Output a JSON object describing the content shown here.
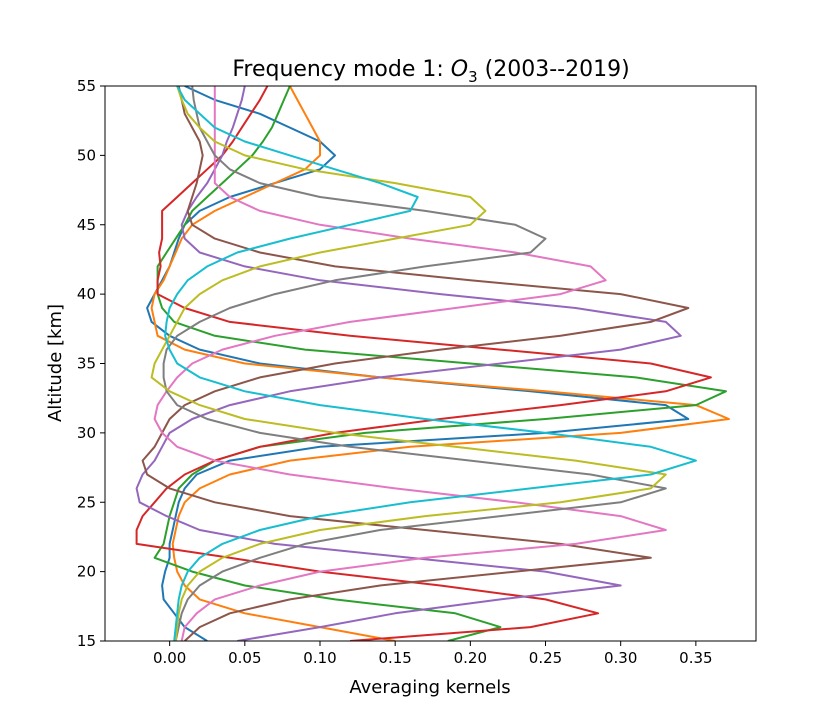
{
  "chart_data": {
    "type": "line",
    "title": "Frequency mode 1: O3 (2003--2019)",
    "title_parts": {
      "prefix": "Frequency mode 1: ",
      "species": "O",
      "subscript": "3",
      "suffix": " (2003--2019)"
    },
    "xlabel": "Averaging kernels",
    "ylabel": "Altitude [km]",
    "xlim": [
      -0.043,
      0.39
    ],
    "ylim": [
      15,
      55
    ],
    "xticks": [
      0.0,
      0.05,
      0.1,
      0.15,
      0.2,
      0.25,
      0.3,
      0.35
    ],
    "xtick_labels": [
      "0.00",
      "0.05",
      "0.10",
      "0.15",
      "0.20",
      "0.25",
      "0.30",
      "0.35"
    ],
    "yticks": [
      15,
      20,
      25,
      30,
      35,
      40,
      45,
      50,
      55
    ],
    "ytick_labels": [
      "15",
      "20",
      "25",
      "30",
      "35",
      "40",
      "45",
      "50",
      "55"
    ],
    "grid": false,
    "legend": "none",
    "altitudes": [
      15,
      16,
      17,
      18,
      19,
      20,
      21,
      22,
      23,
      24,
      25,
      26,
      27,
      28,
      29,
      30,
      31,
      32,
      33,
      34,
      35,
      36,
      37,
      38,
      39,
      40,
      41,
      42,
      43,
      44,
      45,
      46,
      47,
      48,
      49,
      50,
      51,
      52,
      53,
      54,
      55
    ],
    "series": [
      {
        "color": "#1f77b4",
        "values": [
          0.025,
          0.01,
          0.003,
          -0.004,
          -0.005,
          -0.003,
          0.0,
          0.0,
          0.002,
          0.004,
          0.006,
          0.01,
          0.018,
          0.04,
          0.1,
          0.25,
          0.345,
          0.33,
          0.24,
          0.14,
          0.06,
          0.02,
          0.0,
          -0.012,
          -0.015,
          -0.01,
          -0.005,
          0.0,
          0.003,
          0.006,
          0.01,
          0.02,
          0.04,
          0.07,
          0.1,
          0.11,
          0.1,
          0.08,
          0.06,
          0.03,
          0.01
        ]
      },
      {
        "color": "#ff7f0e",
        "values": [
          0.15,
          0.1,
          0.05,
          0.02,
          0.01,
          0.005,
          0.003,
          0.002,
          0.004,
          0.006,
          0.01,
          0.02,
          0.04,
          0.08,
          0.16,
          0.3,
          0.372,
          0.35,
          0.25,
          0.14,
          0.05,
          0.01,
          -0.008,
          -0.01,
          -0.012,
          -0.01,
          -0.004,
          0.0,
          0.004,
          0.008,
          0.015,
          0.03,
          0.05,
          0.07,
          0.09,
          0.1,
          0.1,
          0.095,
          0.09,
          0.085,
          0.08
        ]
      },
      {
        "color": "#2ca02c",
        "values": [
          0.185,
          0.22,
          0.19,
          0.11,
          0.05,
          0.015,
          -0.01,
          -0.004,
          -0.002,
          0.0,
          0.003,
          0.006,
          0.015,
          0.03,
          0.06,
          0.13,
          0.25,
          0.35,
          0.37,
          0.31,
          0.2,
          0.09,
          0.03,
          0.003,
          -0.005,
          -0.008,
          -0.008,
          -0.008,
          -0.002,
          0.004,
          0.01,
          0.015,
          0.025,
          0.035,
          0.045,
          0.055,
          0.062,
          0.068,
          0.072,
          0.076,
          0.08
        ]
      },
      {
        "color": "#d62728",
        "values": [
          0.12,
          0.24,
          0.285,
          0.25,
          0.18,
          0.1,
          0.04,
          -0.022,
          -0.022,
          -0.018,
          -0.01,
          -0.002,
          0.01,
          0.03,
          0.06,
          0.11,
          0.18,
          0.26,
          0.33,
          0.36,
          0.32,
          0.22,
          0.12,
          0.04,
          0.01,
          -0.008,
          -0.008,
          -0.006,
          -0.007,
          -0.005,
          -0.005,
          -0.005,
          0.005,
          0.015,
          0.025,
          0.035,
          0.042,
          0.048,
          0.054,
          0.06,
          0.065
        ]
      },
      {
        "color": "#9467bd",
        "values": [
          0.045,
          0.1,
          0.15,
          0.22,
          0.3,
          0.25,
          0.16,
          0.07,
          0.02,
          -0.002,
          -0.02,
          -0.022,
          -0.018,
          -0.01,
          -0.005,
          0.0,
          0.015,
          0.04,
          0.08,
          0.14,
          0.22,
          0.3,
          0.34,
          0.33,
          0.27,
          0.18,
          0.1,
          0.05,
          0.02,
          0.01,
          0.008,
          0.012,
          0.018,
          0.025,
          0.03,
          0.035,
          0.038,
          0.042,
          0.045,
          0.048,
          0.05
        ]
      },
      {
        "color": "#8c564b",
        "values": [
          0.01,
          0.02,
          0.04,
          0.08,
          0.14,
          0.23,
          0.32,
          0.26,
          0.17,
          0.08,
          0.03,
          0.0,
          -0.015,
          -0.018,
          -0.01,
          -0.005,
          0.0,
          0.01,
          0.03,
          0.06,
          0.11,
          0.18,
          0.26,
          0.32,
          0.345,
          0.3,
          0.2,
          0.11,
          0.06,
          0.03,
          0.015,
          0.012,
          0.015,
          0.018,
          0.02,
          0.022,
          0.02,
          0.015,
          0.01,
          0.008,
          0.006
        ]
      },
      {
        "color": "#e377c2",
        "values": [
          0.008,
          0.01,
          0.018,
          0.03,
          0.06,
          0.1,
          0.17,
          0.27,
          0.33,
          0.3,
          0.23,
          0.15,
          0.08,
          0.03,
          0.005,
          -0.005,
          -0.01,
          -0.008,
          -0.002,
          0.005,
          0.015,
          0.035,
          0.07,
          0.12,
          0.19,
          0.26,
          0.29,
          0.28,
          0.23,
          0.16,
          0.1,
          0.06,
          0.04,
          0.03,
          0.03,
          0.03,
          0.03,
          0.03,
          0.03,
          0.03,
          0.03
        ]
      },
      {
        "color": "#7f7f7f",
        "values": [
          0.004,
          0.006,
          0.008,
          0.012,
          0.02,
          0.035,
          0.06,
          0.09,
          0.14,
          0.22,
          0.3,
          0.33,
          0.28,
          0.2,
          0.12,
          0.06,
          0.025,
          0.005,
          -0.002,
          -0.004,
          -0.004,
          -0.002,
          0.005,
          0.02,
          0.04,
          0.07,
          0.11,
          0.17,
          0.24,
          0.25,
          0.23,
          0.17,
          0.1,
          0.06,
          0.04,
          0.03,
          0.025,
          0.02,
          0.018,
          0.016,
          0.015
        ]
      },
      {
        "color": "#bcbd22",
        "values": [
          0.004,
          0.005,
          0.006,
          0.008,
          0.012,
          0.02,
          0.035,
          0.06,
          0.1,
          0.17,
          0.26,
          0.32,
          0.33,
          0.27,
          0.19,
          0.11,
          0.05,
          0.02,
          0.0,
          -0.012,
          -0.01,
          -0.005,
          0.0,
          0.005,
          0.01,
          0.02,
          0.035,
          0.06,
          0.1,
          0.15,
          0.2,
          0.21,
          0.2,
          0.15,
          0.09,
          0.05,
          0.03,
          0.02,
          0.012,
          0.008,
          0.005
        ]
      },
      {
        "color": "#17becf",
        "values": [
          0.003,
          0.004,
          0.005,
          0.006,
          0.008,
          0.012,
          0.02,
          0.035,
          0.06,
          0.1,
          0.16,
          0.24,
          0.32,
          0.35,
          0.32,
          0.25,
          0.17,
          0.1,
          0.05,
          0.02,
          0.005,
          0.0,
          -0.003,
          -0.002,
          0.0,
          0.005,
          0.012,
          0.025,
          0.045,
          0.08,
          0.12,
          0.16,
          0.165,
          0.14,
          0.11,
          0.08,
          0.05,
          0.03,
          0.02,
          0.01,
          0.005
        ]
      }
    ]
  }
}
